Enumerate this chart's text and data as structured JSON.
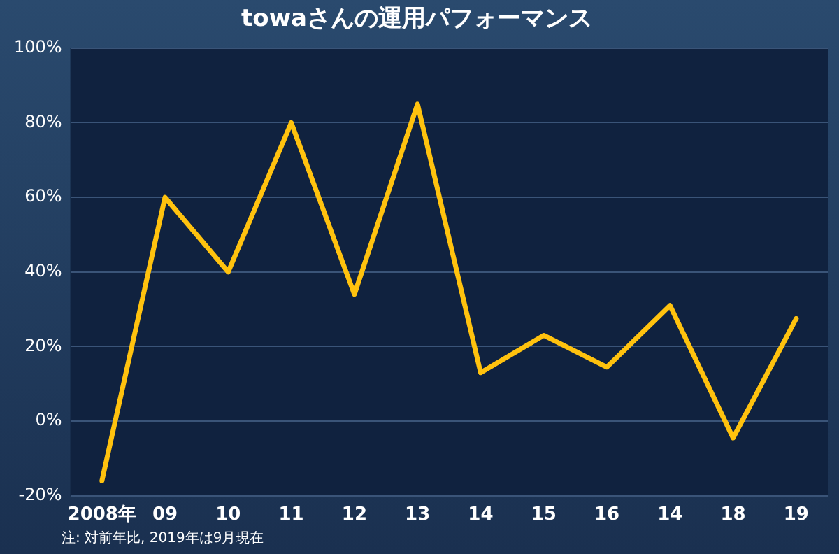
{
  "chart_data": {
    "type": "line",
    "title": "towaさんの運用パフォーマンス",
    "categories": [
      "2008年",
      "09",
      "10",
      "11",
      "12",
      "13",
      "14",
      "15",
      "16",
      "14",
      "18",
      "19"
    ],
    "series": [
      {
        "color": "#ffc20e",
        "values": [
          -16,
          60,
          40,
          80,
          34,
          85,
          13,
          23,
          14.5,
          31,
          -4.5,
          27.5
        ]
      }
    ],
    "ylim": [
      -20,
      100
    ],
    "yticks": [
      {
        "value": -20,
        "label": "-20%"
      },
      {
        "value": 0,
        "label": "0%"
      },
      {
        "value": 20,
        "label": "20%"
      },
      {
        "value": 40,
        "label": "40%"
      },
      {
        "value": 60,
        "label": "60%"
      },
      {
        "value": 80,
        "label": "80%"
      },
      {
        "value": 100,
        "label": "100%"
      }
    ],
    "grid": "y",
    "legend": false,
    "marker": "none",
    "line_style": "solid",
    "annotations": [
      "注: 対前年比, 2019年は9月現在"
    ]
  }
}
